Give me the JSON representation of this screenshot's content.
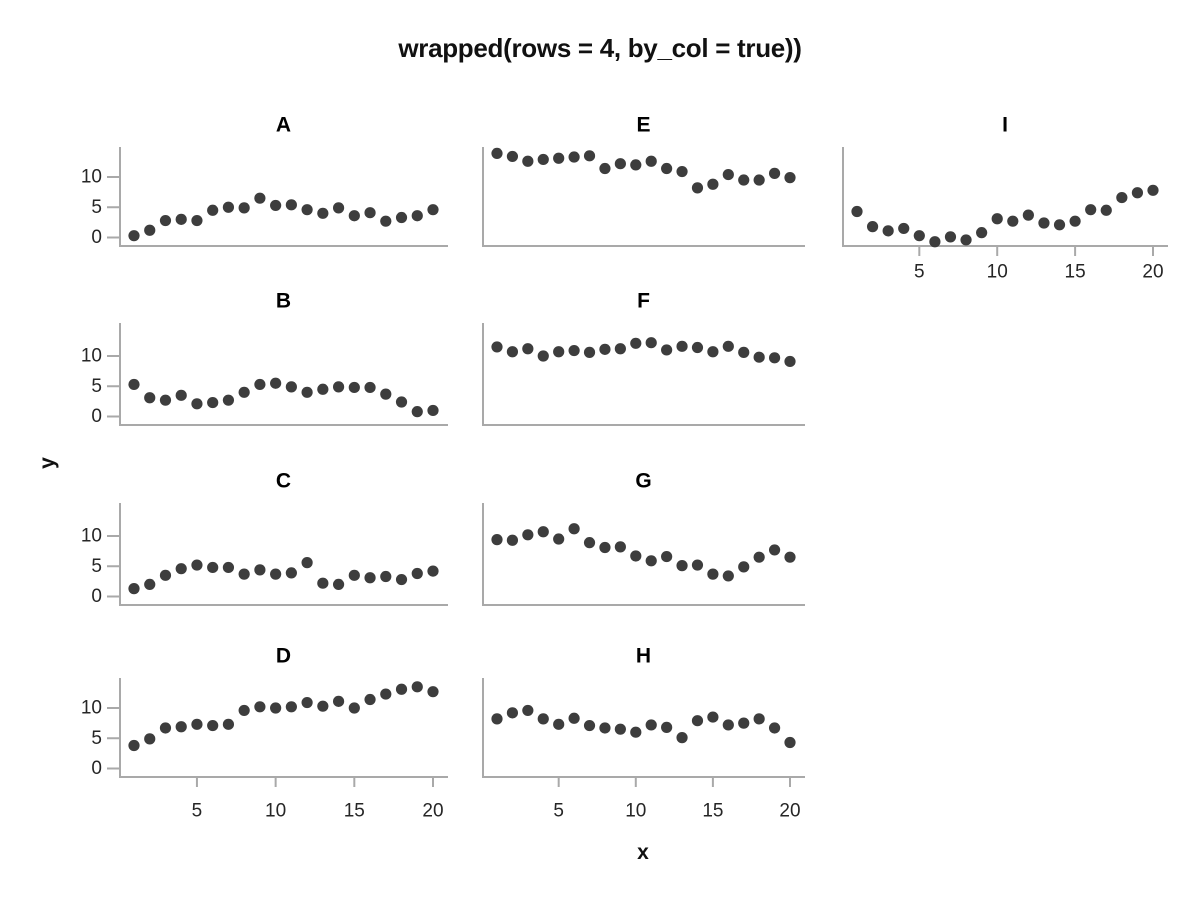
{
  "chart_data": {
    "type": "scatter",
    "title": "wrapped(rows = 4, by_col = true))",
    "xlabel": "x",
    "ylabel": "y",
    "x": [
      1,
      2,
      3,
      4,
      5,
      6,
      7,
      8,
      9,
      10,
      11,
      12,
      13,
      14,
      15,
      16,
      17,
      18,
      19,
      20
    ],
    "x_ticks": [
      5,
      10,
      15,
      20
    ],
    "y_ticks": [
      0,
      5,
      10
    ],
    "xlim": [
      0,
      21
    ],
    "ylim": [
      -1.6,
      15
    ],
    "grid": false,
    "legend": "none",
    "point_color": "#3d3d3d",
    "axis_color": "#a9a9a9",
    "tick_label_color": "#262626",
    "facet_layout": {
      "rows": 4,
      "cols": 3,
      "by_col": true
    },
    "panels": [
      {
        "label": "A",
        "row": 0,
        "col": 0,
        "y_axis": true,
        "x_axis": false,
        "values": [
          0.3,
          1.2,
          2.8,
          3.0,
          2.8,
          4.5,
          5.0,
          4.9,
          6.5,
          5.3,
          5.4,
          4.6,
          4.0,
          4.9,
          3.6,
          4.1,
          2.7,
          3.3,
          3.6,
          4.6
        ]
      },
      {
        "label": "B",
        "row": 1,
        "col": 0,
        "y_axis": true,
        "x_axis": false,
        "values": [
          5.3,
          3.1,
          2.7,
          3.5,
          2.1,
          2.3,
          2.7,
          4.0,
          5.3,
          5.5,
          4.9,
          4.0,
          4.5,
          4.9,
          4.8,
          4.8,
          3.7,
          2.4,
          0.8,
          1.0
        ]
      },
      {
        "label": "C",
        "row": 2,
        "col": 0,
        "y_axis": true,
        "x_axis": false,
        "values": [
          1.3,
          2.0,
          3.5,
          4.6,
          5.2,
          4.8,
          4.8,
          3.7,
          4.4,
          3.7,
          3.9,
          5.6,
          2.2,
          2.0,
          3.5,
          3.1,
          3.3,
          2.8,
          3.8,
          4.2
        ]
      },
      {
        "label": "D",
        "row": 3,
        "col": 0,
        "y_axis": true,
        "x_axis": true,
        "values": [
          3.8,
          4.9,
          6.7,
          6.9,
          7.3,
          7.1,
          7.3,
          9.6,
          10.2,
          10.0,
          10.2,
          10.9,
          10.3,
          11.1,
          10.0,
          11.4,
          12.3,
          13.1,
          13.5,
          12.7
        ]
      },
      {
        "label": "E",
        "row": 0,
        "col": 1,
        "y_axis": false,
        "x_axis": false,
        "values": [
          13.9,
          13.4,
          12.6,
          12.9,
          13.1,
          13.3,
          13.5,
          11.4,
          12.2,
          12.0,
          12.6,
          11.4,
          10.9,
          8.2,
          8.8,
          10.4,
          9.5,
          9.5,
          10.6,
          9.9
        ]
      },
      {
        "label": "F",
        "row": 1,
        "col": 1,
        "y_axis": false,
        "x_axis": false,
        "values": [
          11.5,
          10.7,
          11.2,
          10.0,
          10.7,
          10.9,
          10.6,
          11.1,
          11.2,
          12.1,
          12.2,
          11.0,
          11.6,
          11.4,
          10.7,
          11.6,
          10.6,
          9.8,
          9.7,
          9.1
        ]
      },
      {
        "label": "G",
        "row": 2,
        "col": 1,
        "y_axis": false,
        "x_axis": false,
        "values": [
          9.4,
          9.3,
          10.2,
          10.7,
          9.5,
          11.2,
          8.9,
          8.1,
          8.2,
          6.7,
          5.9,
          6.6,
          5.1,
          5.2,
          3.7,
          3.4,
          4.9,
          6.5,
          7.7,
          6.5
        ]
      },
      {
        "label": "H",
        "row": 3,
        "col": 1,
        "y_axis": false,
        "x_axis": true,
        "values": [
          8.2,
          9.2,
          9.6,
          8.2,
          7.3,
          8.3,
          7.1,
          6.7,
          6.5,
          6.0,
          7.2,
          6.8,
          5.1,
          7.9,
          8.5,
          7.2,
          7.5,
          8.2,
          6.7,
          4.3
        ]
      },
      {
        "label": "I",
        "row": 0,
        "col": 2,
        "y_axis": false,
        "x_axis": true,
        "values": [
          4.3,
          1.8,
          1.1,
          1.5,
          0.3,
          -0.7,
          0.1,
          -0.4,
          0.8,
          3.1,
          2.7,
          3.7,
          2.4,
          2.1,
          2.7,
          4.6,
          4.5,
          6.6,
          7.4,
          7.8
        ]
      }
    ]
  }
}
